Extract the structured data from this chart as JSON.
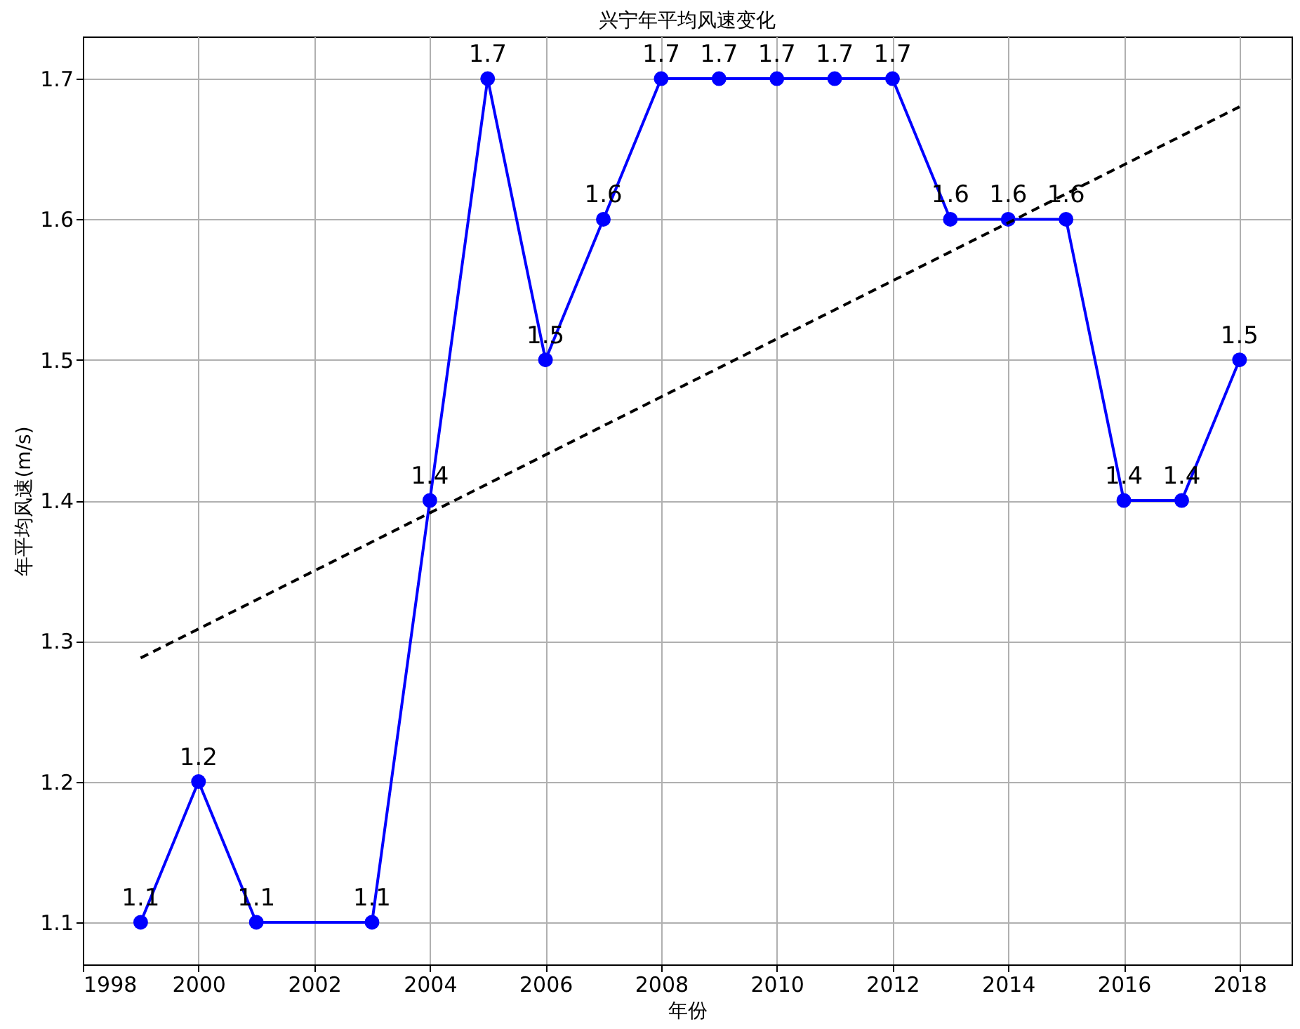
{
  "chart_data": {
    "type": "line",
    "title": "兴宁年平均风速变化",
    "xlabel": "年份",
    "ylabel": "年平均风速(m/s)",
    "xlim": [
      1998,
      2018.9
    ],
    "xticks": [
      1998,
      2000,
      2002,
      2004,
      2006,
      2008,
      2010,
      2012,
      2014,
      2016,
      2018
    ],
    "ylim": [
      1.07,
      1.73
    ],
    "yticks": [
      1.1,
      1.2,
      1.3,
      1.4,
      1.5,
      1.6,
      1.7
    ],
    "grid": true,
    "series": [
      {
        "color": "#0000ff",
        "marker": "circle",
        "line_style": "solid",
        "x": [
          1999,
          2000,
          2001,
          2003,
          2004,
          2005,
          2006,
          2007,
          2008,
          2009,
          2010,
          2011,
          2012,
          2013,
          2014,
          2015,
          2016,
          2017,
          2018
        ],
        "values": [
          1.1,
          1.2,
          1.1,
          1.1,
          1.4,
          1.7,
          1.5,
          1.6,
          1.7,
          1.7,
          1.7,
          1.7,
          1.7,
          1.6,
          1.6,
          1.6,
          1.4,
          1.4,
          1.5
        ],
        "value_labels": [
          "1.1",
          "1.2",
          "1.1",
          "1.1",
          "1.4",
          "1.7",
          "1.5",
          "1.6",
          "1.7",
          "1.7",
          "1.7",
          "1.7",
          "1.7",
          "1.6",
          "1.6",
          "1.6",
          "1.4",
          "1.4",
          "1.5"
        ]
      },
      {
        "type": "line",
        "color": "#000000",
        "marker": "none",
        "line_style": "dashed",
        "x": [
          1999,
          2018
        ],
        "values": [
          1.288,
          1.68
        ]
      }
    ]
  }
}
